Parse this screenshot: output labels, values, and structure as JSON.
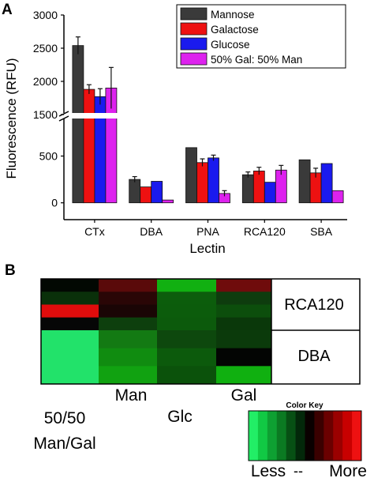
{
  "panel_a": {
    "label": "A"
  },
  "panel_b": {
    "label": "B"
  },
  "chart_data": [
    {
      "type": "bar",
      "xlabel": "Lectin",
      "ylabel": "Fluorescence (RFU)",
      "categories": [
        "CTx",
        "DBA",
        "PNA",
        "RCA120",
        "SBA"
      ],
      "y_axis_break": {
        "lower_ticks": [
          0,
          500
        ],
        "upper_ticks": [
          1500,
          2000,
          2500,
          3000
        ],
        "lower_range": [
          -180,
          800
        ],
        "upper_range": [
          1500,
          3000
        ]
      },
      "legend_position": "top-right",
      "series": [
        {
          "name": "Mannose",
          "color": "#3a3a3a",
          "values": [
            2540,
            250,
            590,
            300,
            460
          ],
          "errors": [
            130,
            30,
            0,
            30,
            0
          ]
        },
        {
          "name": "Galactose",
          "color": "#ee1111",
          "values": [
            1880,
            170,
            430,
            340,
            320
          ],
          "errors": [
            70,
            0,
            40,
            40,
            50
          ]
        },
        {
          "name": "Glucose",
          "color": "#1a1aee",
          "values": [
            1770,
            230,
            480,
            220,
            420
          ],
          "errors": [
            120,
            0,
            30,
            0,
            0
          ]
        },
        {
          "name": "50% Gal: 50% Man",
          "color": "#dd22ee",
          "values": [
            1900,
            30,
            100,
            350,
            130
          ],
          "errors": [
            310,
            0,
            30,
            50,
            0
          ]
        }
      ]
    },
    {
      "type": "heatmap",
      "columns": [
        "50/50 Man/Gal",
        "Man",
        "Glc",
        "Gal"
      ],
      "rows": [
        "RCA120",
        "DBA"
      ],
      "cells": [
        [
          [
            "#020802",
            "#0a300a",
            "#e00c0c",
            "#060606"
          ],
          [
            "#5a0a0a",
            "#2a0606",
            "#1a0505",
            "#0d3f0d"
          ],
          [
            "#11b011",
            "#0c5d0c",
            "#0c5c0c",
            "#0c5a0c"
          ],
          [
            "#6f0c0c",
            "#0e3c0e",
            "#0c4e0c",
            "#0a380a"
          ]
        ],
        [
          [
            "#22e26a"
          ],
          [
            "#137a13",
            "#108c10",
            "#11a211"
          ],
          [
            "#0d480d",
            "#0c5a0c",
            "#0b520b"
          ],
          [
            "#0b3a0b",
            "#030503",
            "#10b010"
          ]
        ]
      ],
      "color_key": {
        "title": "Color Key",
        "colors": [
          "#22ee66",
          "#11c944",
          "#0ea032",
          "#0b7a22",
          "#075014",
          "#03280a",
          "#0a0000",
          "#3a0000",
          "#6a0000",
          "#9a0000",
          "#c80000",
          "#ee1111"
        ],
        "labels": [
          "Less",
          "--",
          "More"
        ]
      }
    }
  ]
}
